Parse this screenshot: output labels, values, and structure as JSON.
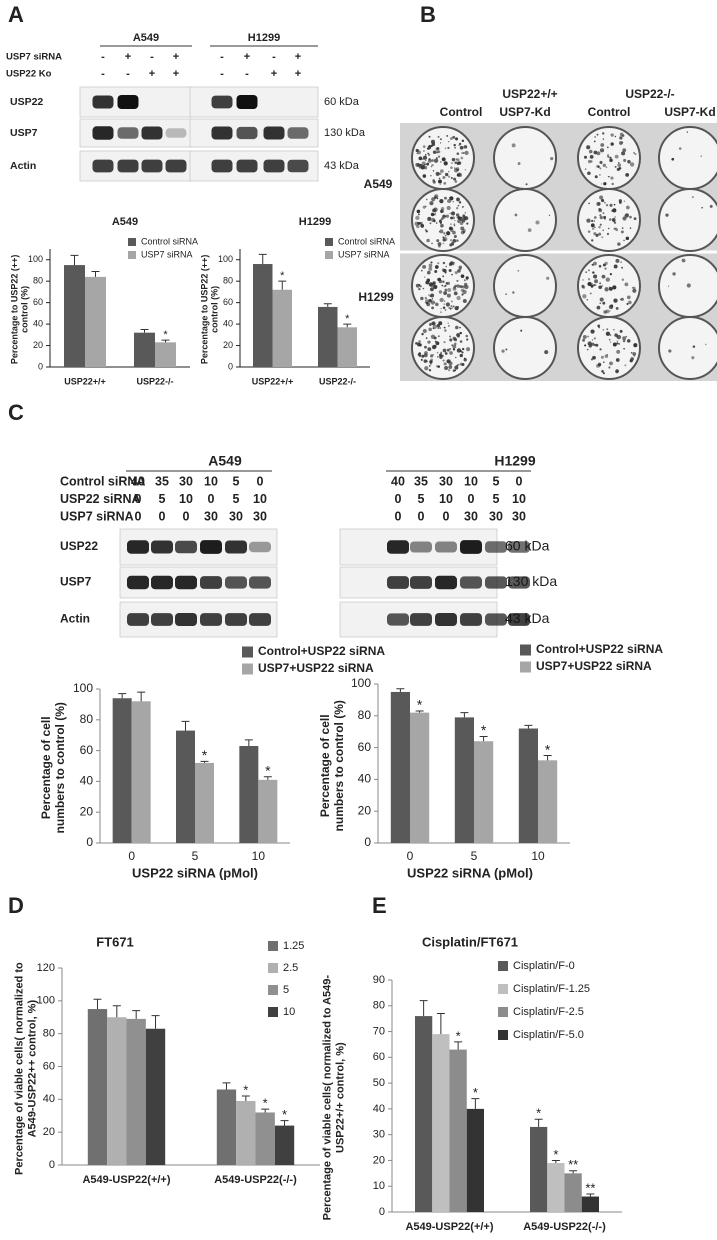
{
  "panel_labels": [
    "A",
    "B",
    "C",
    "D",
    "E"
  ],
  "panel_a": {
    "cells": [
      "A549",
      "H1299"
    ],
    "conditions": [
      {
        "label": "USP7 siRNA",
        "signs": [
          [
            "-",
            "+",
            "-",
            "+"
          ],
          [
            "-",
            "+",
            "-",
            "+"
          ]
        ]
      },
      {
        "label": "USP22 Ko",
        "signs": [
          [
            "-",
            "-",
            "+",
            "+"
          ],
          [
            "-",
            "-",
            "+",
            "+"
          ]
        ]
      }
    ],
    "proteins": [
      "USP22",
      "USP7",
      "Actin"
    ],
    "sizes": [
      "60 kDa",
      "130 kDa",
      "43 kDa"
    ]
  },
  "panel_b": {
    "genotypes": [
      "USP22+/+",
      "USP22-/-"
    ],
    "treatments": [
      "Control",
      "USP7-Kd",
      "Control",
      "USP7-Kd"
    ],
    "cells": [
      "A549",
      "H1299"
    ]
  },
  "panel_c": {
    "cells": [
      "A549",
      "H1299"
    ],
    "conditions": [
      {
        "label": "Control siRNA",
        "amounts": [
          [
            40,
            35,
            30,
            10,
            5,
            0
          ],
          [
            40,
            35,
            30,
            10,
            5,
            0
          ]
        ]
      },
      {
        "label": "USP22 siRNA",
        "amounts": [
          [
            0,
            5,
            10,
            0,
            5,
            10
          ],
          [
            0,
            5,
            10,
            0,
            5,
            10
          ]
        ]
      },
      {
        "label": "USP7 siRNA",
        "amounts": [
          [
            0,
            0,
            0,
            30,
            30,
            30
          ],
          [
            0,
            0,
            0,
            30,
            30,
            30
          ]
        ]
      }
    ],
    "proteins": [
      "USP22",
      "USP7",
      "Actin"
    ],
    "sizes": [
      "60 kDa",
      "130 kDa",
      "43 kDa"
    ]
  },
  "chart_data": [
    {
      "type": "bar",
      "title": "A549",
      "ylabel": "Percentage to USP22 (++) control (%)",
      "categories": [
        "USP22+/+",
        "USP22-/-"
      ],
      "ylim": [
        0,
        110
      ],
      "yticks": [
        0,
        20,
        40,
        60,
        80,
        100
      ],
      "series": [
        {
          "name": "Control siRNA",
          "color": "#595959",
          "values": [
            95,
            32
          ],
          "errors": [
            9,
            3
          ]
        },
        {
          "name": "USP7 siRNA",
          "color": "#a6a6a6",
          "values": [
            84,
            23
          ],
          "errors": [
            5,
            2
          ],
          "annotations": [
            null,
            "*"
          ]
        }
      ]
    },
    {
      "type": "bar",
      "title": "H1299",
      "ylabel": "Percentage to USP22 (++) control (%)",
      "categories": [
        "USP22+/+",
        "USP22-/-"
      ],
      "ylim": [
        0,
        110
      ],
      "yticks": [
        0,
        20,
        40,
        60,
        80,
        100
      ],
      "series": [
        {
          "name": "Control siRNA",
          "color": "#595959",
          "values": [
            96,
            56
          ],
          "errors": [
            9,
            3
          ]
        },
        {
          "name": "USP7 siRNA",
          "color": "#a6a6a6",
          "values": [
            72,
            37
          ],
          "errors": [
            8,
            3
          ],
          "annotations": [
            "*",
            "*"
          ]
        }
      ]
    },
    {
      "type": "bar",
      "xlabel": "USP22 siRNA (pMol)",
      "ylabel": "Percentage of cell numbers to control (%)",
      "categories": [
        "0",
        "5",
        "10"
      ],
      "ylim": [
        0,
        100
      ],
      "yticks": [
        0,
        20,
        40,
        60,
        80,
        100
      ],
      "series": [
        {
          "name": "Control+USP22 siRNA",
          "color": "#595959",
          "values": [
            94,
            73,
            63
          ],
          "errors": [
            3,
            6,
            4
          ]
        },
        {
          "name": "USP7+USP22 siRNA",
          "color": "#a6a6a6",
          "values": [
            92,
            52,
            41
          ],
          "errors": [
            6,
            1,
            2
          ],
          "annotations": [
            null,
            "*",
            "*"
          ]
        }
      ]
    },
    {
      "type": "bar",
      "xlabel": "USP22 siRNA (pMol)",
      "ylabel": "Percentage of cell numbers to control (%)",
      "categories": [
        "0",
        "5",
        "10"
      ],
      "ylim": [
        0,
        100
      ],
      "yticks": [
        0,
        20,
        40,
        60,
        80,
        100
      ],
      "series": [
        {
          "name": "Control+USP22 siRNA",
          "color": "#595959",
          "values": [
            95,
            79,
            72
          ],
          "errors": [
            2,
            3,
            2
          ]
        },
        {
          "name": "USP7+USP22 siRNA",
          "color": "#a6a6a6",
          "values": [
            82,
            64,
            52
          ],
          "errors": [
            1,
            3,
            3
          ],
          "annotations": [
            "*",
            "*",
            "*"
          ]
        }
      ]
    },
    {
      "type": "bar",
      "title": "FT671",
      "ylabel": "Percentage of viable cells( normalized to A549-USP22++ control, %)",
      "categories": [
        "A549-USP22(+/+)",
        "A549-USP22(-/-)"
      ],
      "ylim": [
        0,
        120
      ],
      "yticks": [
        0,
        20,
        40,
        60,
        80,
        100,
        120
      ],
      "series": [
        {
          "name": "1.25",
          "color": "#707070",
          "values": [
            95,
            46
          ],
          "errors": [
            6,
            4
          ]
        },
        {
          "name": "2.5",
          "color": "#b0b0b0",
          "values": [
            90,
            39
          ],
          "errors": [
            7,
            3
          ],
          "annotations": [
            null,
            "*"
          ]
        },
        {
          "name": "5",
          "color": "#909090",
          "values": [
            89,
            32
          ],
          "errors": [
            5,
            2
          ],
          "annotations": [
            null,
            "*"
          ]
        },
        {
          "name": "10",
          "color": "#404040",
          "values": [
            83,
            24
          ],
          "errors": [
            8,
            3
          ],
          "annotations": [
            null,
            "*"
          ]
        }
      ]
    },
    {
      "type": "bar",
      "title": "Cisplatin/FT671",
      "ylabel": "Percentage of viable cells( normalized to A549-USP22+/+ control, %)",
      "categories": [
        "A549-USP22(+/+)",
        "A549-USP22(-/-)"
      ],
      "ylim": [
        0,
        90
      ],
      "yticks": [
        0,
        10,
        20,
        30,
        40,
        50,
        60,
        70,
        80,
        90
      ],
      "series": [
        {
          "name": "Cisplatin/F-0",
          "color": "#595959",
          "values": [
            76,
            33
          ],
          "errors": [
            6,
            3
          ],
          "annotations": [
            null,
            "*"
          ]
        },
        {
          "name": "Cisplatin/F-1.25",
          "color": "#bfbfbf",
          "values": [
            69,
            19
          ],
          "errors": [
            8,
            1
          ],
          "annotations": [
            null,
            "*"
          ]
        },
        {
          "name": "Cisplatin/F-2.5",
          "color": "#8c8c8c",
          "values": [
            63,
            15
          ],
          "errors": [
            3,
            1
          ],
          "annotations": [
            "*",
            "**"
          ]
        },
        {
          "name": "Cisplatin/F-5.0",
          "color": "#333333",
          "values": [
            40,
            6
          ],
          "errors": [
            4,
            1
          ],
          "annotations": [
            "*",
            "**"
          ]
        }
      ]
    }
  ]
}
